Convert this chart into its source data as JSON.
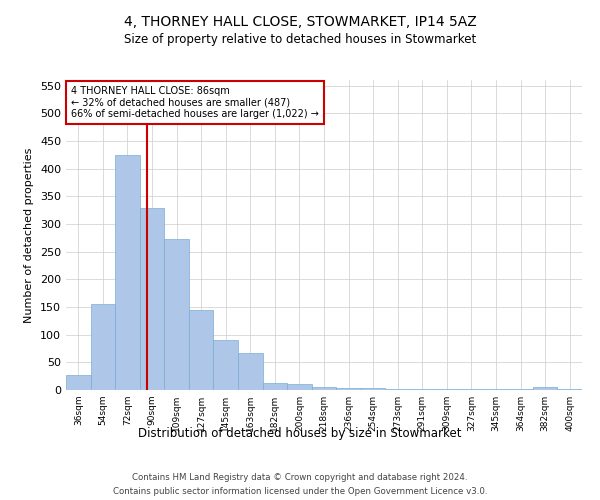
{
  "title": "4, THORNEY HALL CLOSE, STOWMARKET, IP14 5AZ",
  "subtitle": "Size of property relative to detached houses in Stowmarket",
  "xlabel": "Distribution of detached houses by size in Stowmarket",
  "ylabel": "Number of detached properties",
  "bar_color": "#aec6e8",
  "bar_edge_color": "#7aadd4",
  "categories": [
    "36sqm",
    "54sqm",
    "72sqm",
    "90sqm",
    "109sqm",
    "127sqm",
    "145sqm",
    "163sqm",
    "182sqm",
    "200sqm",
    "218sqm",
    "236sqm",
    "254sqm",
    "273sqm",
    "291sqm",
    "309sqm",
    "327sqm",
    "345sqm",
    "364sqm",
    "382sqm",
    "400sqm"
  ],
  "values": [
    28,
    155,
    425,
    328,
    272,
    145,
    90,
    67,
    13,
    10,
    5,
    4,
    3,
    2,
    1,
    1,
    1,
    1,
    1,
    5,
    1
  ],
  "ylim": [
    0,
    560
  ],
  "yticks": [
    0,
    50,
    100,
    150,
    200,
    250,
    300,
    350,
    400,
    450,
    500,
    550
  ],
  "marker_label": "4 THORNEY HALL CLOSE: 86sqm",
  "marker_line_color": "#cc0000",
  "annotation_lines": [
    "← 32% of detached houses are smaller (487)",
    "66% of semi-detached houses are larger (1,022) →"
  ],
  "annotation_box_color": "#ffffff",
  "annotation_box_edge": "#cc0000",
  "background_color": "#ffffff",
  "grid_color": "#cccccc",
  "footer_line1": "Contains HM Land Registry data © Crown copyright and database right 2024.",
  "footer_line2": "Contains public sector information licensed under the Open Government Licence v3.0."
}
